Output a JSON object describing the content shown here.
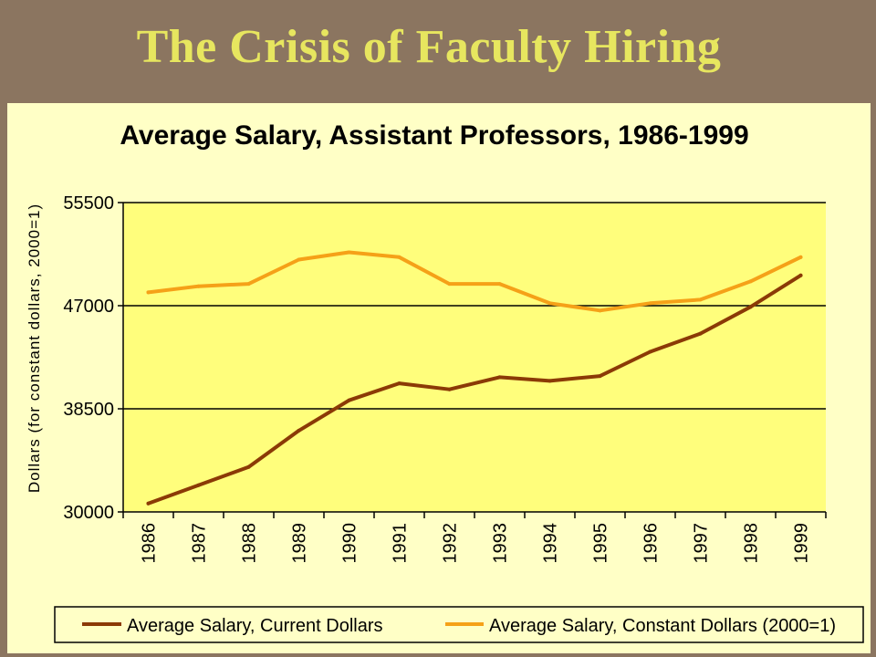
{
  "slide": {
    "title": "The Crisis of Faculty Hiring"
  },
  "chart_data": {
    "type": "line",
    "title": "Average Salary, Assistant Professors, 1986-1999",
    "xlabel": "",
    "ylabel": "Dollars  (for constant dollars, 2000=1)",
    "categories": [
      "1986",
      "1987",
      "1988",
      "1989",
      "1990",
      "1991",
      "1992",
      "1993",
      "1994",
      "1995",
      "1996",
      "1997",
      "1998",
      "1999"
    ],
    "ylim": [
      30000,
      55500
    ],
    "yticks": [
      30000,
      38500,
      47000,
      55500
    ],
    "grid": true,
    "legend_position": "bottom",
    "series": [
      {
        "name": "Average Salary, Current Dollars",
        "color": "#8b3a06",
        "values": [
          30700,
          32200,
          33700,
          36700,
          39200,
          40600,
          40100,
          41100,
          40800,
          41200,
          43200,
          44700,
          46900,
          49500
        ]
      },
      {
        "name": "Average Salary, Constant Dollars (2000=1)",
        "color": "#f5a118",
        "values": [
          48100,
          48600,
          48800,
          50800,
          51400,
          51000,
          48800,
          48800,
          47200,
          46600,
          47200,
          47500,
          49000,
          51000
        ]
      }
    ]
  },
  "colors": {
    "background": "#8b7560",
    "title": "#e7e65f",
    "panel": "#ffffc6",
    "plot_area": "#fffe7c"
  }
}
